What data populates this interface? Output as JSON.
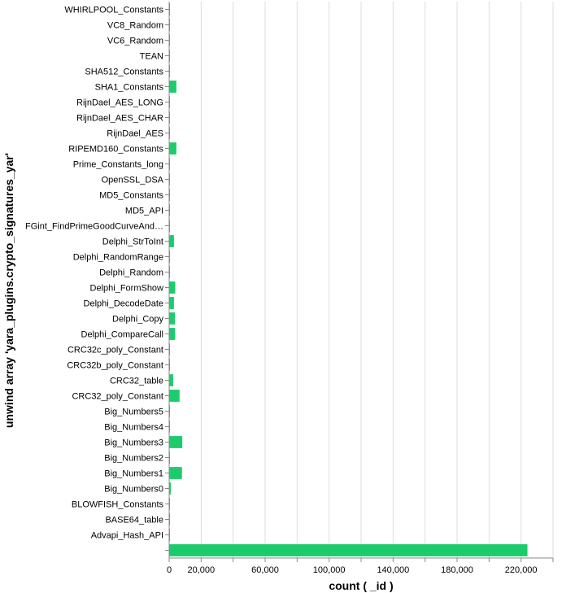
{
  "chart_data": {
    "type": "bar",
    "orientation": "horizontal",
    "title": "",
    "xlabel": "count ( _id )",
    "ylabel": "unwind array 'yara_plugins.crypto_signatures_yar'",
    "xlim": [
      0,
      240000
    ],
    "x_ticks": [
      0,
      20000,
      60000,
      100000,
      140000,
      180000,
      220000
    ],
    "x_tick_labels": [
      "0",
      "20,000",
      "60,000",
      "100,000",
      "140,000",
      "180,000",
      "220,000"
    ],
    "grid": true,
    "bar_color": "#1ccb6c",
    "categories": [
      "WHIRLPOOL_Constants",
      "VC8_Random",
      "VC6_Random",
      "TEAN",
      "SHA512_Constants",
      "SHA1_Constants",
      "RijnDael_AES_LONG",
      "RijnDael_AES_CHAR",
      "RijnDael_AES",
      "RIPEMD160_Constants",
      "Prime_Constants_long",
      "OpenSSL_DSA",
      "MD5_Constants",
      "MD5_API",
      "FGint_FindPrimeGoodCurveAnd…",
      "Delphi_StrToInt",
      "Delphi_RandomRange",
      "Delphi_Random",
      "Delphi_FormShow",
      "Delphi_DecodeDate",
      "Delphi_Copy",
      "Delphi_CompareCall",
      "CRC32c_poly_Constant",
      "CRC32b_poly_Constant",
      "CRC32_table",
      "CRC32_poly_Constant",
      "Big_Numbers5",
      "Big_Numbers4",
      "Big_Numbers3",
      "Big_Numbers2",
      "Big_Numbers1",
      "Big_Numbers0",
      "BLOWFISH_Constants",
      "BASE64_table",
      "Advapi_Hash_API",
      ""
    ],
    "values": [
      150,
      100,
      100,
      300,
      100,
      4500,
      100,
      100,
      100,
      4500,
      100,
      100,
      400,
      100,
      100,
      3000,
      100,
      100,
      3800,
      3000,
      3600,
      3700,
      100,
      100,
      2500,
      6500,
      100,
      100,
      8200,
      100,
      8000,
      1000,
      100,
      300,
      300,
      224000
    ]
  }
}
